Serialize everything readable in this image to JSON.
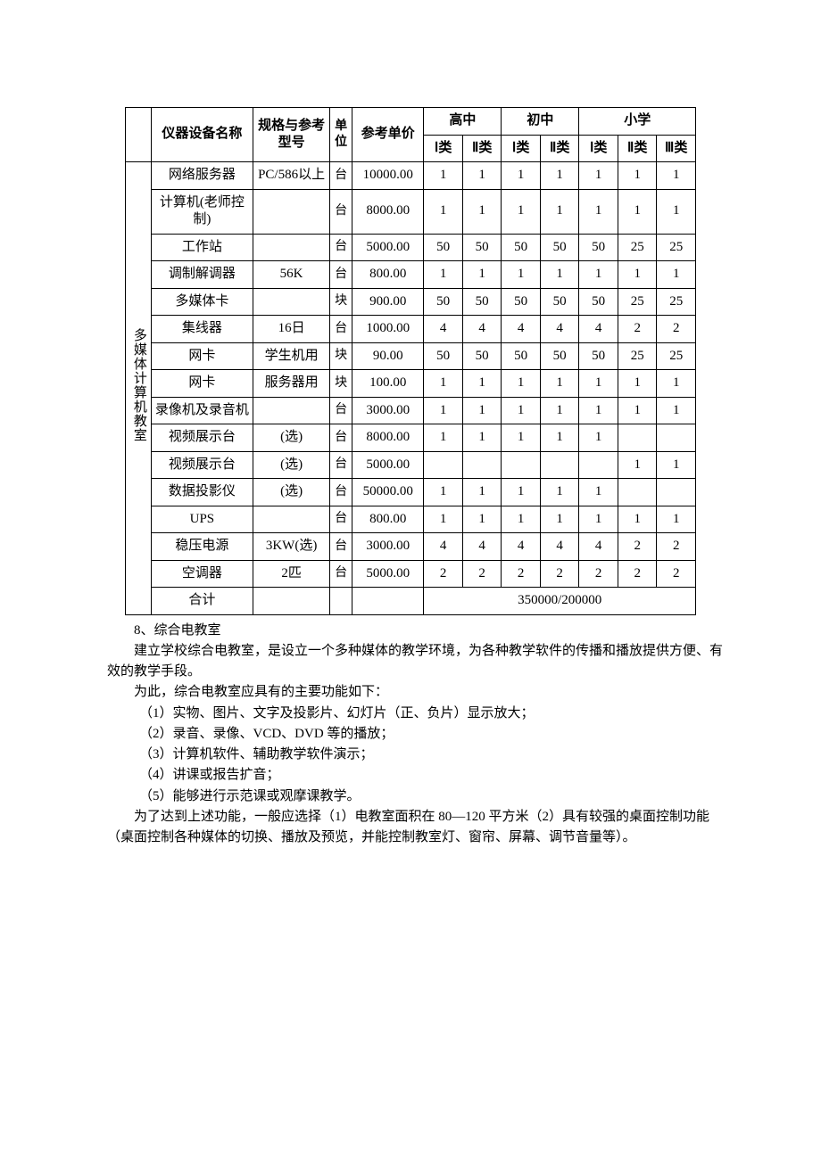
{
  "table": {
    "header": {
      "category_label": "",
      "name": "仪器设备名称",
      "spec": "规格与参考型号",
      "unit": "单位",
      "price": "参考单价",
      "groups": [
        "高中",
        "初中",
        "小学"
      ],
      "sub1": [
        "Ⅰ类",
        "Ⅱ类"
      ],
      "sub2": [
        "Ⅰ类",
        "Ⅱ类"
      ],
      "sub3": [
        "Ⅰ类",
        "Ⅱ类",
        "Ⅲ类"
      ]
    },
    "category": "多媒体计算机教室",
    "rows": [
      {
        "name": "网络服务器",
        "spec": "PC/586以上",
        "unit": "台",
        "price": "10000.00",
        "q": [
          "1",
          "1",
          "1",
          "1",
          "1",
          "1",
          "1"
        ]
      },
      {
        "name": "计算机(老师控制)",
        "spec": "",
        "unit": "台",
        "price": "8000.00",
        "q": [
          "1",
          "1",
          "1",
          "1",
          "1",
          "1",
          "1"
        ]
      },
      {
        "name": "工作站",
        "spec": "",
        "unit": "台",
        "price": "5000.00",
        "q": [
          "50",
          "50",
          "50",
          "50",
          "50",
          "25",
          "25"
        ]
      },
      {
        "name": "调制解调器",
        "spec": "56K",
        "unit": "台",
        "price": "800.00",
        "q": [
          "1",
          "1",
          "1",
          "1",
          "1",
          "1",
          "1"
        ]
      },
      {
        "name": "多媒体卡",
        "spec": "",
        "unit": "块",
        "price": "900.00",
        "q": [
          "50",
          "50",
          "50",
          "50",
          "50",
          "25",
          "25"
        ]
      },
      {
        "name": "集线器",
        "spec": "16日",
        "unit": "台",
        "price": "1000.00",
        "q": [
          "4",
          "4",
          "4",
          "4",
          "4",
          "2",
          "2"
        ]
      },
      {
        "name": "网卡",
        "spec": "学生机用",
        "unit": "块",
        "price": "90.00",
        "q": [
          "50",
          "50",
          "50",
          "50",
          "50",
          "25",
          "25"
        ]
      },
      {
        "name": "网卡",
        "spec": "服务器用",
        "unit": "块",
        "price": "100.00",
        "q": [
          "1",
          "1",
          "1",
          "1",
          "1",
          "1",
          "1"
        ]
      },
      {
        "name": "录像机及录音机",
        "spec": "",
        "unit": "台",
        "price": "3000.00",
        "q": [
          "1",
          "1",
          "1",
          "1",
          "1",
          "1",
          "1"
        ]
      },
      {
        "name": "视频展示台",
        "spec": "(选)",
        "unit": "台",
        "price": "8000.00",
        "q": [
          "1",
          "1",
          "1",
          "1",
          "1",
          "",
          ""
        ]
      },
      {
        "name": "视频展示台",
        "spec": "(选)",
        "unit": "台",
        "price": "5000.00",
        "q": [
          "",
          "",
          "",
          "",
          "",
          "1",
          "1"
        ]
      },
      {
        "name": "数据投影仪",
        "spec": "(选)",
        "unit": "台",
        "price": "50000.00",
        "q": [
          "1",
          "1",
          "1",
          "1",
          "1",
          "",
          ""
        ]
      },
      {
        "name": "UPS",
        "spec": "",
        "unit": "台",
        "price": "800.00",
        "q": [
          "1",
          "1",
          "1",
          "1",
          "1",
          "1",
          "1"
        ]
      },
      {
        "name": "稳压电源",
        "spec": "3KW(选)",
        "unit": "台",
        "price": "3000.00",
        "q": [
          "4",
          "4",
          "4",
          "4",
          "4",
          "2",
          "2"
        ]
      },
      {
        "name": "空调器",
        "spec": "2匹",
        "unit": "台",
        "price": "5000.00",
        "q": [
          "2",
          "2",
          "2",
          "2",
          "2",
          "2",
          "2"
        ]
      }
    ],
    "total_label": "合计",
    "total_value": "350000/200000",
    "border_color": "#000000",
    "font_size": 15
  },
  "paragraphs": {
    "p1": "8、综合电教室",
    "p2": "建立学校综合电教室，是设立一个多种媒体的教学环境，为各种教学软件的传播和播放提供方便、有效的教学手段。",
    "p3": "为此，综合电教室应具有的主要功能如下：",
    "p4": "（1）实物、图片、文字及投影片、幻灯片（正、负片）显示放大；",
    "p5": "（2）录音、录像、VCD、DVD 等的播放；",
    "p6": "（3）计算机软件、辅助教学软件演示；",
    "p7": "（4）讲课或报告扩音；",
    "p8": "（5）能够进行示范课或观摩课教学。",
    "p9": "为了达到上述功能，一般应选择（1）电教室面积在 80—120 平方米（2）具有较强的桌面控制功能（桌面控制各种媒体的切换、播放及预览，并能控制教室灯、窗帘、屏幕、调节音量等）。"
  }
}
